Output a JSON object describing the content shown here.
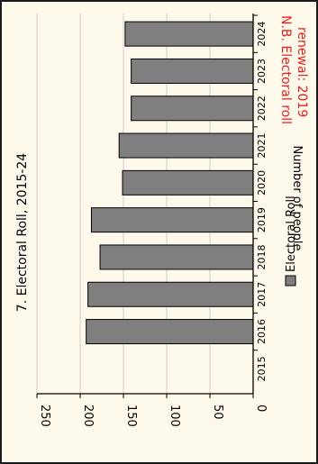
{
  "chart_data": {
    "type": "bar",
    "orientation": "rotated-90-cw",
    "title": "7. Electoral Roll, 2015-24",
    "ylabel": "Number of people",
    "xlabel": "",
    "categories": [
      "2015",
      "2016",
      "2017",
      "2018",
      "2019",
      "2020",
      "2021",
      "2022",
      "2023",
      "2024"
    ],
    "series": [
      {
        "name": "Electoral Roll",
        "values": [
          0,
          193,
          191,
          177,
          187,
          151,
          155,
          141,
          141,
          148
        ]
      }
    ],
    "ylim": [
      0,
      250
    ],
    "yticks": [
      "0",
      "50",
      "100",
      "150",
      "200",
      "250"
    ],
    "grid": true,
    "legend_position": "bottom-right",
    "annotation": {
      "lines": [
        "N.B. Electoral roll",
        "renewal: 2019"
      ],
      "color": "#e8201f"
    },
    "colors": {
      "bar": "#7f7f7f",
      "frame_background": "#fff9ec",
      "gridline": "#cfcfcf"
    }
  }
}
